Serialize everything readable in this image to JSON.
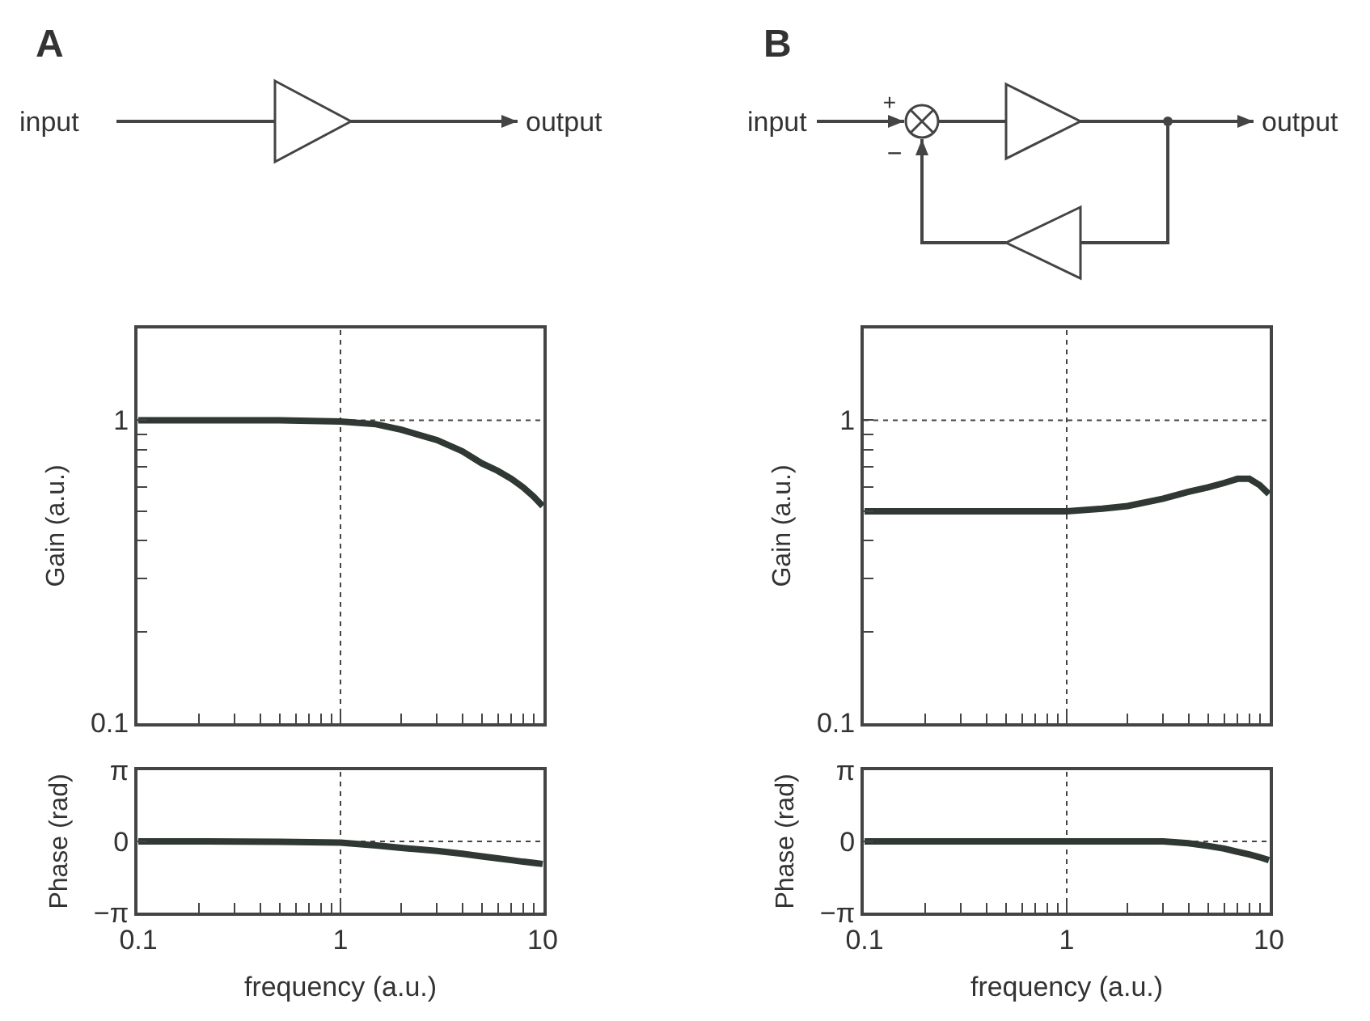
{
  "chart_data": [
    {
      "type": "line",
      "title": "A",
      "ylabel": "Gain (a.u.)",
      "annotations": [
        "input",
        "output"
      ],
      "x": [
        0.1,
        0.2,
        0.5,
        1,
        1.5,
        2,
        3,
        4,
        5,
        6,
        7,
        8,
        9,
        10
      ],
      "series": [
        {
          "color": "#2f3833",
          "values": [
            1,
            1,
            1,
            0.99,
            0.97,
            0.93,
            0.86,
            0.79,
            0.72,
            0.68,
            0.64,
            0.6,
            0.56,
            0.52
          ]
        }
      ],
      "xlim": [
        0.1,
        10
      ],
      "xticks": [
        0.1,
        {
          "value": 0.2,
          "label": null
        },
        {
          "value": 0.3,
          "label": null
        },
        {
          "value": 0.4,
          "label": null
        },
        {
          "value": 0.5,
          "label": null
        },
        {
          "value": 0.6,
          "label": null
        },
        {
          "value": 0.7,
          "label": null
        },
        {
          "value": 0.8,
          "label": null
        },
        {
          "value": 0.9,
          "label": null
        },
        1,
        {
          "value": 2,
          "label": null
        },
        {
          "value": 3,
          "label": null
        },
        {
          "value": 4,
          "label": null
        },
        {
          "value": 5,
          "label": null
        },
        {
          "value": 6,
          "label": null
        },
        {
          "value": 7,
          "label": null
        },
        {
          "value": 8,
          "label": null
        },
        {
          "value": 9,
          "label": null
        },
        10
      ],
      "ylim": [
        0.1,
        2
      ],
      "yticks": [
        0.1,
        {
          "value": 0.2,
          "label": null
        },
        {
          "value": 0.3,
          "label": null
        },
        {
          "value": 0.4,
          "label": null
        },
        {
          "value": 0.5,
          "label": null
        },
        {
          "value": 0.6,
          "label": null
        },
        {
          "value": 0.7,
          "label": null
        },
        {
          "value": 0.8,
          "label": null
        },
        {
          "value": 0.9,
          "label": null
        },
        1
      ],
      "log": "xy",
      "grid": true,
      "tick_labels": "y"
    },
    {
      "type": "line",
      "ylabel": "Phase (rad)",
      "xlabel": "frequency (a.u.)",
      "x": [
        0.1,
        0.2,
        0.5,
        1,
        1.5,
        2,
        3,
        4,
        5,
        6,
        7,
        8,
        9,
        10
      ],
      "series": [
        {
          "color": "#2f3833",
          "values": [
            0,
            0,
            -0.02,
            -0.05,
            -0.18,
            -0.29,
            -0.42,
            -0.55,
            -0.66,
            -0.75,
            -0.83,
            -0.9,
            -0.95,
            -1.0
          ]
        }
      ],
      "xlim": [
        0.1,
        10
      ],
      "xticks": [
        0.1,
        {
          "value": 0.2,
          "label": null
        },
        {
          "value": 0.3,
          "label": null
        },
        {
          "value": 0.4,
          "label": null
        },
        {
          "value": 0.5,
          "label": null
        },
        {
          "value": 0.6,
          "label": null
        },
        {
          "value": 0.7,
          "label": null
        },
        {
          "value": 0.8,
          "label": null
        },
        {
          "value": 0.9,
          "label": null
        },
        1,
        {
          "value": 2,
          "label": null
        },
        {
          "value": 3,
          "label": null
        },
        {
          "value": 4,
          "label": null
        },
        {
          "value": 5,
          "label": null
        },
        {
          "value": 6,
          "label": null
        },
        {
          "value": 7,
          "label": null
        },
        {
          "value": 8,
          "label": null
        },
        {
          "value": 9,
          "label": null
        },
        10
      ],
      "ylim": [
        -3.1416,
        3.1416
      ],
      "yticks": [
        {
          "value": -3.1416,
          "label": "−π"
        },
        0,
        {
          "value": 3.1416,
          "label": "π"
        }
      ],
      "log": "x",
      "grid": true
    },
    {
      "type": "line",
      "title": "B",
      "ylabel": "Gain (a.u.)",
      "annotations": [
        "input",
        "output",
        "+",
        "−"
      ],
      "x": [
        0.1,
        0.2,
        0.5,
        1,
        1.5,
        2,
        3,
        4,
        5,
        6,
        7,
        8,
        9,
        10
      ],
      "series": [
        {
          "color": "#2f3833",
          "values": [
            0.5,
            0.5,
            0.5,
            0.5,
            0.51,
            0.52,
            0.55,
            0.58,
            0.6,
            0.62,
            0.64,
            0.64,
            0.61,
            0.57
          ]
        }
      ],
      "xlim": [
        0.1,
        10
      ],
      "xticks": [
        0.1,
        {
          "value": 0.2,
          "label": null
        },
        {
          "value": 0.3,
          "label": null
        },
        {
          "value": 0.4,
          "label": null
        },
        {
          "value": 0.5,
          "label": null
        },
        {
          "value": 0.6,
          "label": null
        },
        {
          "value": 0.7,
          "label": null
        },
        {
          "value": 0.8,
          "label": null
        },
        {
          "value": 0.9,
          "label": null
        },
        1,
        {
          "value": 2,
          "label": null
        },
        {
          "value": 3,
          "label": null
        },
        {
          "value": 4,
          "label": null
        },
        {
          "value": 5,
          "label": null
        },
        {
          "value": 6,
          "label": null
        },
        {
          "value": 7,
          "label": null
        },
        {
          "value": 8,
          "label": null
        },
        {
          "value": 9,
          "label": null
        },
        10
      ],
      "ylim": [
        0.1,
        2
      ],
      "yticks": [
        0.1,
        {
          "value": 0.2,
          "label": null
        },
        {
          "value": 0.3,
          "label": null
        },
        {
          "value": 0.4,
          "label": null
        },
        {
          "value": 0.5,
          "label": null
        },
        {
          "value": 0.6,
          "label": null
        },
        {
          "value": 0.7,
          "label": null
        },
        {
          "value": 0.8,
          "label": null
        },
        {
          "value": 0.9,
          "label": null
        },
        1
      ],
      "log": "xy",
      "grid": true,
      "tick_labels": "y"
    },
    {
      "type": "line",
      "ylabel": "Phase (rad)",
      "xlabel": "frequency (a.u.)",
      "x": [
        0.1,
        0.2,
        0.5,
        1,
        1.5,
        2,
        3,
        4,
        5,
        6,
        7,
        8,
        9,
        10
      ],
      "series": [
        {
          "color": "#2f3833",
          "values": [
            0,
            0,
            0,
            0,
            0,
            0,
            0,
            -0.08,
            -0.2,
            -0.32,
            -0.46,
            -0.58,
            -0.7,
            -0.83
          ]
        }
      ],
      "xlim": [
        0.1,
        10
      ],
      "xticks": [
        0.1,
        {
          "value": 0.2,
          "label": null
        },
        {
          "value": 0.3,
          "label": null
        },
        {
          "value": 0.4,
          "label": null
        },
        {
          "value": 0.5,
          "label": null
        },
        {
          "value": 0.6,
          "label": null
        },
        {
          "value": 0.7,
          "label": null
        },
        {
          "value": 0.8,
          "label": null
        },
        {
          "value": 0.9,
          "label": null
        },
        1,
        {
          "value": 2,
          "label": null
        },
        {
          "value": 3,
          "label": null
        },
        {
          "value": 4,
          "label": null
        },
        {
          "value": 5,
          "label": null
        },
        {
          "value": 6,
          "label": null
        },
        {
          "value": 7,
          "label": null
        },
        {
          "value": 8,
          "label": null
        },
        {
          "value": 9,
          "label": null
        },
        10
      ],
      "ylim": [
        -3.1416,
        3.1416
      ],
      "yticks": [
        {
          "value": -3.1416,
          "label": "−π"
        },
        0,
        {
          "value": 3.1416,
          "label": "π"
        }
      ],
      "log": "x",
      "grid": true
    }
  ]
}
